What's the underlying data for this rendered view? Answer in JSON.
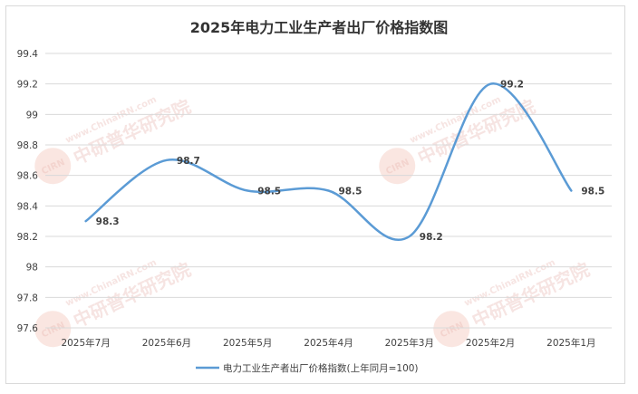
{
  "chart_data": {
    "type": "line",
    "title": "2025年电力工业生产者出厂价格指数图",
    "categories": [
      "2025年7月",
      "2025年6月",
      "2025年5月",
      "2025年4月",
      "2025年3月",
      "2025年2月",
      "2025年1月"
    ],
    "series": [
      {
        "name": "电力工业生产者出厂价格指数(上年同月=100)",
        "values": [
          98.3,
          98.7,
          98.5,
          98.5,
          98.2,
          99.2,
          98.5
        ],
        "color": "#5b9bd5"
      }
    ],
    "data_labels": [
      "98.3",
      "98.7",
      "98.5",
      "98.5",
      "98.2",
      "99.2",
      "98.5"
    ],
    "ylim": [
      97.6,
      99.4
    ],
    "yticks": [
      "97.6",
      "97.8",
      "98",
      "98.2",
      "98.4",
      "98.6",
      "98.8",
      "99",
      "99.2",
      "99.4"
    ],
    "xlabel": "",
    "ylabel": "",
    "grid": true,
    "legend_position": "bottom",
    "smooth": true
  },
  "watermark": {
    "url_text": "www.ChinaIRN.com",
    "name_text": "中研普华研究院",
    "logo_text": "CIRN"
  }
}
